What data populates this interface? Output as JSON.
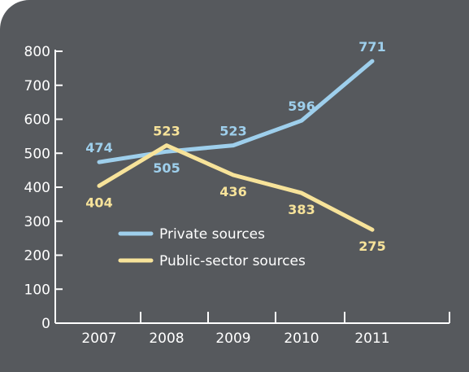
{
  "colors": {
    "background": "#56595d",
    "private": "#9ecfec",
    "public": "#f7e39a",
    "axis": "#ffffff"
  },
  "chart_data": {
    "type": "line",
    "title": "",
    "xlabel": "",
    "ylabel": "",
    "categories": [
      "2007",
      "2008",
      "2009",
      "2010",
      "2011"
    ],
    "ylim": [
      0,
      800
    ],
    "yticks": [
      0,
      100,
      200,
      300,
      400,
      500,
      600,
      700,
      800
    ],
    "grid": false,
    "legend_position": "lower-left",
    "series": [
      {
        "name": "Private sources",
        "values": [
          474,
          505,
          523,
          596,
          771
        ],
        "labels": [
          "474",
          "505",
          "523",
          "596",
          "771"
        ]
      },
      {
        "name": "Public-sector sources",
        "values": [
          404,
          523,
          436,
          383,
          275
        ],
        "labels": [
          "404",
          "523",
          "436",
          "383",
          "275"
        ]
      }
    ]
  }
}
